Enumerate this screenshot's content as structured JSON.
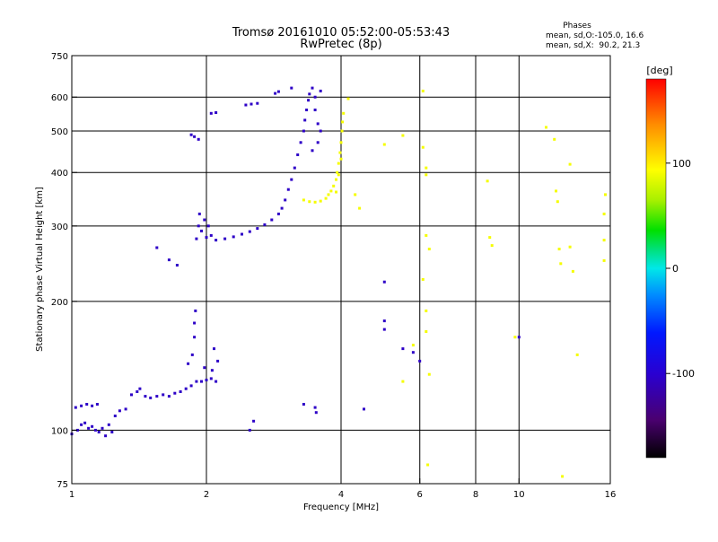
{
  "chart_data": {
    "type": "scatter",
    "title": "Tromsø 20161010 05:52:00-05:53:43",
    "subtitle": "RwPretec (8p)",
    "side_block": {
      "heading": "Phases",
      "line1": "mean, sd,O:-105.0, 16.6",
      "line2": "mean, sd,X:  90.2, 21.3"
    },
    "xlabel": "Frequency [MHz]",
    "ylabel": "Stationary phase Virtual Height [km]",
    "x_scale": "log",
    "y_scale": "log",
    "xlim": [
      1,
      16
    ],
    "ylim": [
      75,
      750
    ],
    "x_ticks": [
      1,
      2,
      4,
      6,
      8,
      10,
      16
    ],
    "x_tick_labels": [
      "1",
      "2",
      "4",
      "6",
      "8",
      "10",
      "16"
    ],
    "y_ticks": [
      75,
      100,
      200,
      300,
      400,
      500,
      600,
      750
    ],
    "y_tick_labels": [
      "75",
      "100",
      "200",
      "300",
      "400",
      "500",
      "600",
      "750"
    ],
    "x_gridlines": [
      2,
      4,
      6,
      8,
      10
    ],
    "y_gridlines": [
      100,
      200,
      300,
      400,
      500,
      600
    ],
    "grid": true,
    "colorbar": {
      "label": "[deg]",
      "range": [
        -180,
        180
      ],
      "ticks": [
        100,
        0,
        -100
      ],
      "tick_labels": [
        "100",
        "0",
        "-100"
      ]
    },
    "series": [
      {
        "mode": "O",
        "phase_deg": -105.0,
        "points": [
          [
            1.0,
            98
          ],
          [
            1.03,
            100
          ],
          [
            1.05,
            103
          ],
          [
            1.07,
            104
          ],
          [
            1.09,
            101
          ],
          [
            1.11,
            102
          ],
          [
            1.13,
            100
          ],
          [
            1.15,
            99
          ],
          [
            1.17,
            101
          ],
          [
            1.19,
            97
          ],
          [
            1.21,
            103
          ],
          [
            1.23,
            99
          ],
          [
            1.02,
            113
          ],
          [
            1.05,
            114
          ],
          [
            1.08,
            115
          ],
          [
            1.11,
            114
          ],
          [
            1.14,
            115
          ],
          [
            1.25,
            108
          ],
          [
            1.28,
            111
          ],
          [
            1.32,
            112
          ],
          [
            1.36,
            121
          ],
          [
            1.4,
            123
          ],
          [
            1.42,
            125
          ],
          [
            1.46,
            120
          ],
          [
            1.5,
            119
          ],
          [
            1.55,
            120
          ],
          [
            1.6,
            121
          ],
          [
            1.65,
            120
          ],
          [
            1.7,
            122
          ],
          [
            1.75,
            123
          ],
          [
            1.8,
            125
          ],
          [
            1.85,
            127
          ],
          [
            1.9,
            130
          ],
          [
            1.95,
            130
          ],
          [
            2.0,
            131
          ],
          [
            2.05,
            132
          ],
          [
            2.1,
            130
          ],
          [
            1.82,
            143
          ],
          [
            1.86,
            150
          ],
          [
            1.88,
            165
          ],
          [
            1.88,
            178
          ],
          [
            1.89,
            190
          ],
          [
            1.98,
            140
          ],
          [
            2.06,
            138
          ],
          [
            2.08,
            155
          ],
          [
            2.12,
            145
          ],
          [
            1.85,
            490
          ],
          [
            1.88,
            485
          ],
          [
            1.92,
            478
          ],
          [
            2.05,
            550
          ],
          [
            2.1,
            552
          ],
          [
            2.45,
            575
          ],
          [
            2.52,
            578
          ],
          [
            2.6,
            580
          ],
          [
            2.85,
            612
          ],
          [
            2.9,
            618
          ],
          [
            3.1,
            630
          ],
          [
            1.9,
            280
          ],
          [
            1.92,
            300
          ],
          [
            1.93,
            320
          ],
          [
            1.95,
            292
          ],
          [
            1.98,
            310
          ],
          [
            2.0,
            282
          ],
          [
            2.02,
            300
          ],
          [
            2.05,
            285
          ],
          [
            2.1,
            278
          ],
          [
            2.2,
            280
          ],
          [
            2.3,
            283
          ],
          [
            2.4,
            287
          ],
          [
            2.5,
            291
          ],
          [
            2.6,
            296
          ],
          [
            2.7,
            302
          ],
          [
            2.8,
            310
          ],
          [
            2.9,
            320
          ],
          [
            2.95,
            330
          ],
          [
            3.0,
            345
          ],
          [
            3.05,
            365
          ],
          [
            3.1,
            385
          ],
          [
            3.15,
            410
          ],
          [
            3.2,
            440
          ],
          [
            3.25,
            470
          ],
          [
            3.3,
            500
          ],
          [
            3.32,
            530
          ],
          [
            3.35,
            560
          ],
          [
            3.38,
            590
          ],
          [
            3.4,
            610
          ],
          [
            3.45,
            630
          ],
          [
            3.5,
            600
          ],
          [
            3.5,
            560
          ],
          [
            3.55,
            520
          ],
          [
            3.6,
            620
          ],
          [
            3.45,
            450
          ],
          [
            3.55,
            470
          ],
          [
            3.6,
            500
          ],
          [
            3.3,
            115
          ],
          [
            3.5,
            113
          ],
          [
            3.52,
            110
          ],
          [
            4.5,
            112
          ],
          [
            5.0,
            222
          ],
          [
            5.0,
            180
          ],
          [
            5.0,
            172
          ],
          [
            5.5,
            155
          ],
          [
            5.8,
            152
          ],
          [
            6.0,
            145
          ],
          [
            2.55,
            105
          ],
          [
            2.5,
            100
          ],
          [
            1.55,
            267
          ],
          [
            1.65,
            250
          ],
          [
            1.72,
            243
          ],
          [
            10.0,
            165
          ]
        ]
      },
      {
        "mode": "X",
        "phase_deg": 90.2,
        "points": [
          [
            3.3,
            345
          ],
          [
            3.4,
            342
          ],
          [
            3.5,
            341
          ],
          [
            3.6,
            343
          ],
          [
            3.7,
            348
          ],
          [
            3.75,
            355
          ],
          [
            3.8,
            362
          ],
          [
            3.85,
            372
          ],
          [
            3.9,
            385
          ],
          [
            3.92,
            400
          ],
          [
            3.95,
            420
          ],
          [
            3.98,
            445
          ],
          [
            4.0,
            470
          ],
          [
            4.02,
            500
          ],
          [
            4.03,
            525
          ],
          [
            4.05,
            550
          ],
          [
            3.9,
            360
          ],
          [
            3.95,
            395
          ],
          [
            4.0,
            430
          ],
          [
            4.15,
            595
          ],
          [
            4.3,
            355
          ],
          [
            4.4,
            330
          ],
          [
            5.5,
            488
          ],
          [
            5.0,
            465
          ],
          [
            6.1,
            458
          ],
          [
            6.2,
            410
          ],
          [
            6.2,
            395
          ],
          [
            6.2,
            285
          ],
          [
            6.3,
            265
          ],
          [
            6.1,
            225
          ],
          [
            6.2,
            190
          ],
          [
            6.2,
            170
          ],
          [
            6.3,
            135
          ],
          [
            6.25,
            83
          ],
          [
            8.5,
            382
          ],
          [
            8.6,
            282
          ],
          [
            8.7,
            270
          ],
          [
            9.8,
            165
          ],
          [
            11.5,
            510
          ],
          [
            12.0,
            478
          ],
          [
            12.1,
            362
          ],
          [
            12.2,
            342
          ],
          [
            12.3,
            265
          ],
          [
            12.4,
            245
          ],
          [
            13.0,
            268
          ],
          [
            13.2,
            235
          ],
          [
            13.5,
            150
          ],
          [
            13.0,
            418
          ],
          [
            12.5,
            78
          ],
          [
            15.5,
            320
          ],
          [
            15.5,
            278
          ],
          [
            15.5,
            249
          ],
          [
            15.6,
            355
          ],
          [
            5.8,
            158
          ],
          [
            5.5,
            130
          ],
          [
            6.1,
            620
          ]
        ]
      }
    ]
  }
}
